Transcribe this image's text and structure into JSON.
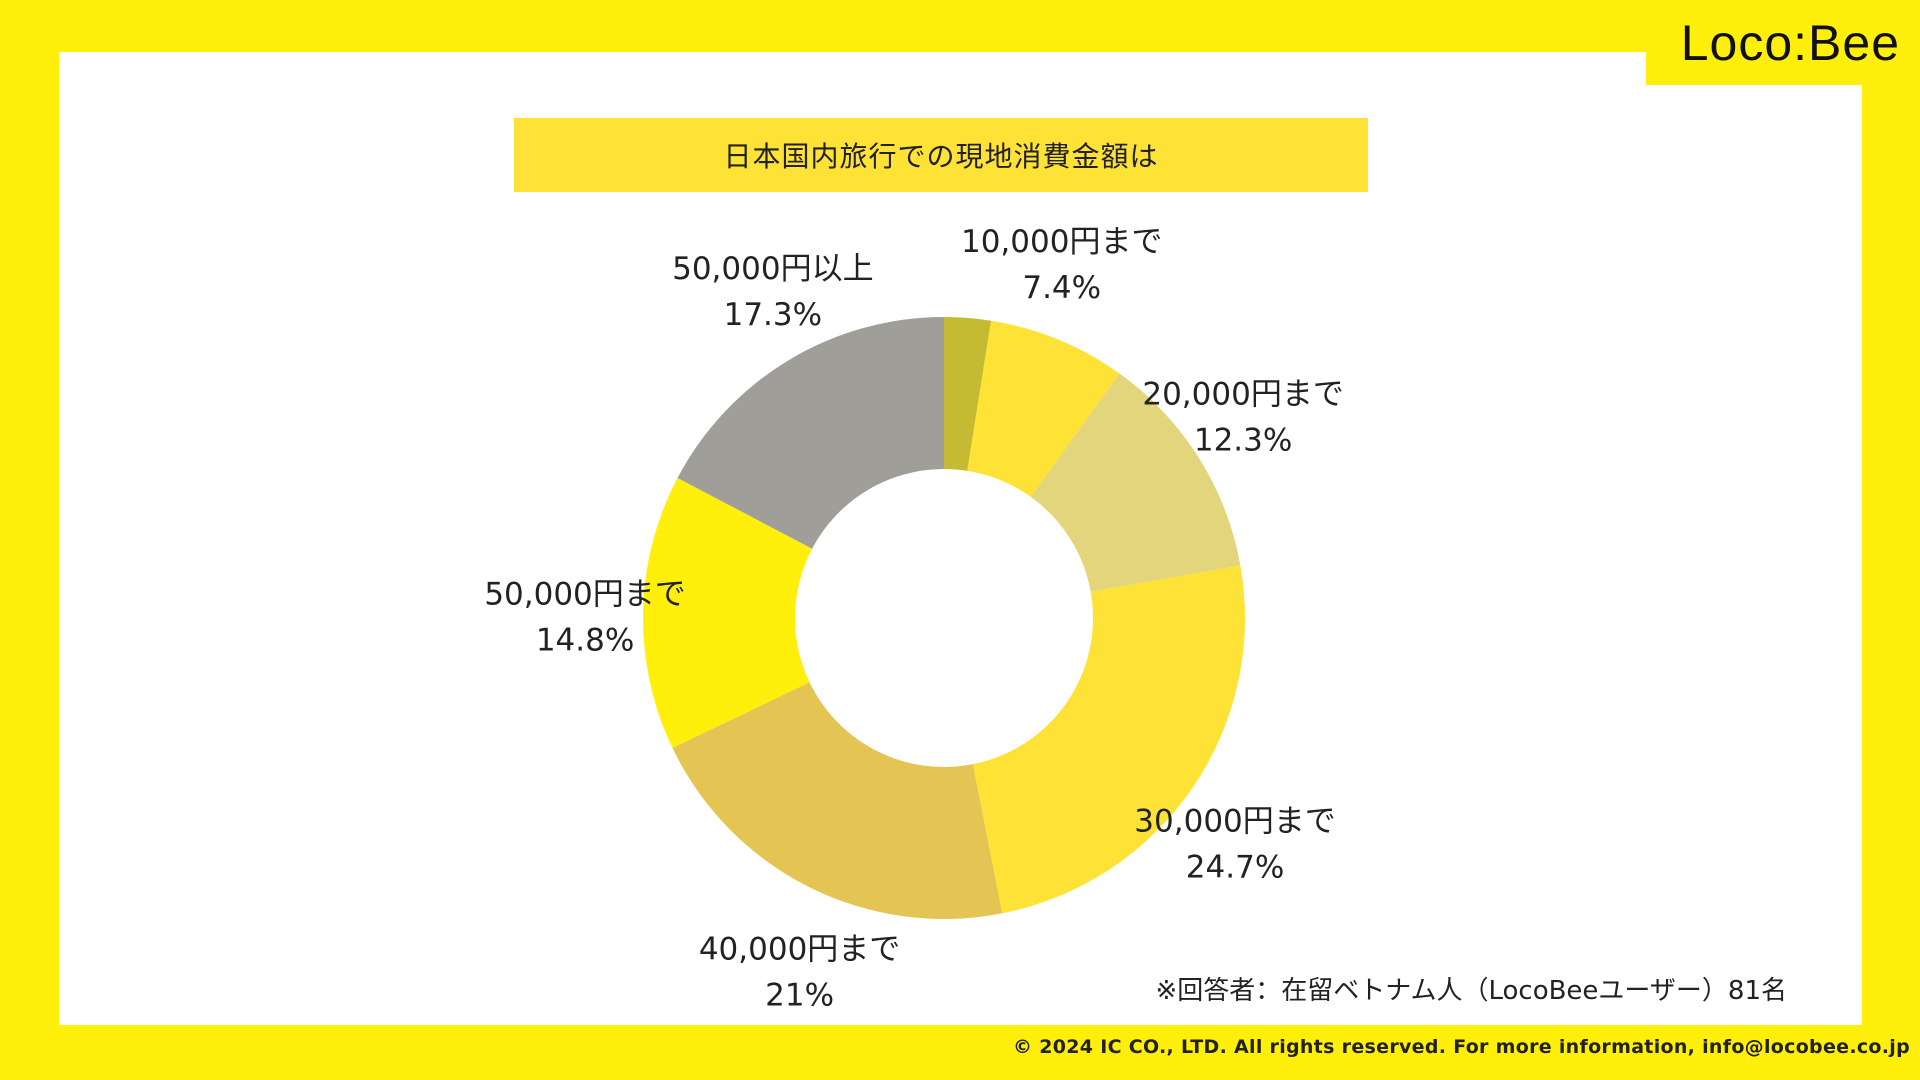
{
  "logo": "Loco:Bee",
  "note": "※回答者：在留ベトナム人（LocoBeeユーザー）81名",
  "copyright": "© 2024 IC CO., LTD. All rights reserved. For more information, info@locobee.co.jp",
  "chart_data": {
    "type": "pie",
    "title": "日本国内旅行での現地消費金額は",
    "donut": true,
    "categories": [
      "10,000円まで",
      "20,000円まで",
      "30,000円まで",
      "40,000円まで",
      "50,000円まで",
      "50,000円以上"
    ],
    "values": [
      7.4,
      12.3,
      24.7,
      21,
      14.8,
      17.3
    ],
    "labels": [
      "7.4%",
      "12.3%",
      "24.7%",
      "21%",
      "14.8%",
      "17.3%"
    ],
    "unlabeled_slice_value": 2.5,
    "colors": [
      "#FFE236",
      "#E2D57C",
      "#FFE236",
      "#E4C452",
      "#FFEF0A",
      "#A09E99"
    ],
    "unlabeled_slice_color": "#C5BB32"
  }
}
